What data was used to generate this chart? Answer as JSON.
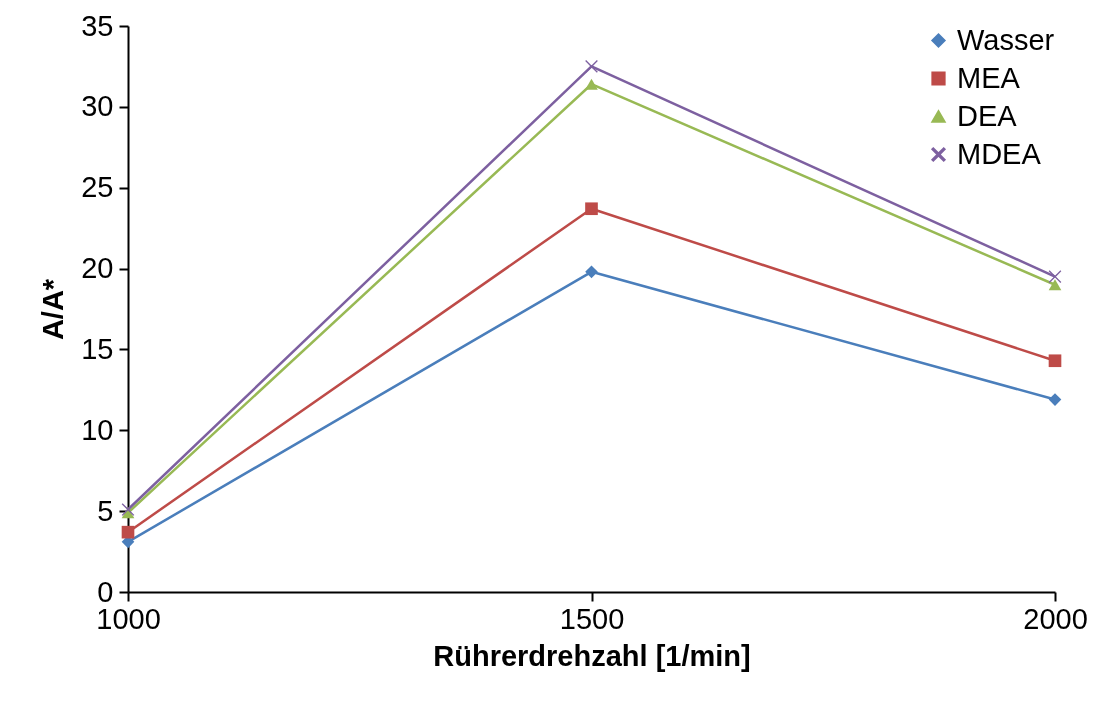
{
  "chart_data": {
    "type": "line",
    "xlabel": "Rührerdrehzahl [1/min]",
    "ylabel": "A/A*",
    "x": [
      1000,
      1500,
      2000
    ],
    "xlim": [
      1000,
      2000
    ],
    "xticks": [
      1000,
      1500,
      2000
    ],
    "ylim": [
      0,
      35
    ],
    "yticks": [
      0,
      5,
      10,
      15,
      20,
      25,
      30,
      35
    ],
    "grid": false,
    "legend": "top right",
    "line_style": "solid",
    "series": [
      {
        "name": "Wasser",
        "color": "#4a7ebb",
        "marker": "diamond",
        "values": [
          3.1,
          19.8,
          11.9
        ]
      },
      {
        "name": "MEA",
        "color": "#be4b48",
        "marker": "square",
        "values": [
          3.7,
          23.7,
          14.3
        ]
      },
      {
        "name": "DEA",
        "color": "#98b954",
        "marker": "triangle",
        "values": [
          4.9,
          31.4,
          19.0
        ]
      },
      {
        "name": "MDEA",
        "color": "#7d60a0",
        "marker": "cross",
        "values": [
          5.1,
          32.5,
          19.5
        ]
      }
    ]
  }
}
